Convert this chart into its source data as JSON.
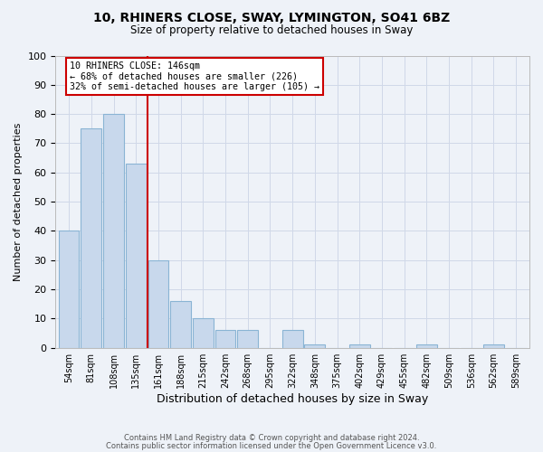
{
  "title1": "10, RHINERS CLOSE, SWAY, LYMINGTON, SO41 6BZ",
  "title2": "Size of property relative to detached houses in Sway",
  "xlabel": "Distribution of detached houses by size in Sway",
  "ylabel": "Number of detached properties",
  "footer1": "Contains HM Land Registry data © Crown copyright and database right 2024.",
  "footer2": "Contains public sector information licensed under the Open Government Licence v3.0.",
  "bar_labels": [
    "54sqm",
    "81sqm",
    "108sqm",
    "135sqm",
    "161sqm",
    "188sqm",
    "215sqm",
    "242sqm",
    "268sqm",
    "295sqm",
    "322sqm",
    "348sqm",
    "375sqm",
    "402sqm",
    "429sqm",
    "455sqm",
    "482sqm",
    "509sqm",
    "536sqm",
    "562sqm",
    "589sqm"
  ],
  "bar_values": [
    40,
    75,
    80,
    63,
    30,
    16,
    10,
    6,
    6,
    0,
    6,
    1,
    0,
    1,
    0,
    0,
    1,
    0,
    0,
    1,
    0
  ],
  "bar_color": "#c8d8ec",
  "bar_edge_color": "#8ab4d4",
  "vline_x": 3.5,
  "vline_color": "#cc0000",
  "annotation_text": "10 RHINERS CLOSE: 146sqm\n← 68% of detached houses are smaller (226)\n32% of semi-detached houses are larger (105) →",
  "annotation_box_color": "#ffffff",
  "annotation_box_edge_color": "#cc0000",
  "ylim": [
    0,
    100
  ],
  "yticks": [
    0,
    10,
    20,
    30,
    40,
    50,
    60,
    70,
    80,
    90,
    100
  ],
  "grid_color": "#d0d8e8",
  "bg_color": "#eef2f8"
}
